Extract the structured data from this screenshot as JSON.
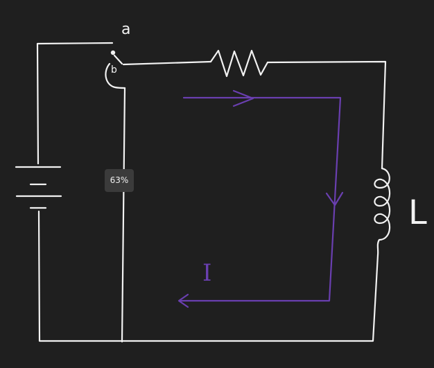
{
  "diagram": {
    "labels": {
      "switch_terminal_a": "a",
      "switch_terminal_b": "b",
      "inductor": "L",
      "current": "I"
    },
    "colors": {
      "background": "#1f1f1f",
      "wire": "#f2f2f2",
      "current_arrow": "#6a3fb0"
    }
  },
  "zoom_badge": {
    "text": "63%"
  }
}
